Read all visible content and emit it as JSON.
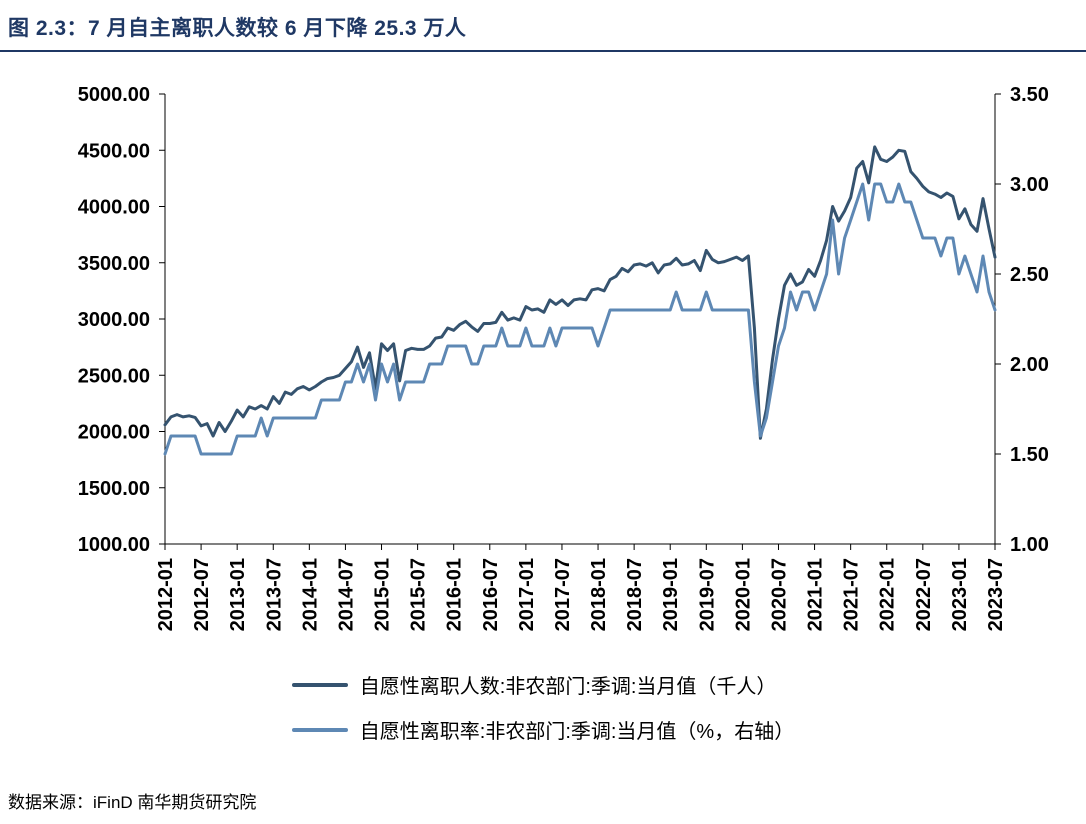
{
  "header": {
    "title": "图 2.3：7 月自主离职人数较 6 月下降 25.3 万人"
  },
  "footer": {
    "source": "数据来源：iFinD 南华期货研究院"
  },
  "colors": {
    "title_navy": "#1f3864",
    "series_dark": "#35536f",
    "series_light": "#5e88b4",
    "axis_black": "#000000"
  },
  "chart_data": {
    "type": "line",
    "title": "",
    "xlabel": "",
    "frequency": "monthly",
    "x_start": "2012-01",
    "x_end": "2023-07",
    "x_tick_every": 6,
    "x_ticks": [
      "2012-01",
      "2012-07",
      "2013-01",
      "2013-07",
      "2014-01",
      "2014-07",
      "2015-01",
      "2015-07",
      "2016-01",
      "2016-07",
      "2017-01",
      "2017-07",
      "2018-01",
      "2018-07",
      "2019-01",
      "2019-07",
      "2020-01",
      "2020-07",
      "2021-01",
      "2021-07",
      "2022-01",
      "2022-07",
      "2023-01",
      "2023-07"
    ],
    "grid": false,
    "legend_position": "bottom",
    "left_axis": {
      "min": 1000,
      "max": 5000,
      "step": 500,
      "decimals": 2
    },
    "right_axis": {
      "min": 1.0,
      "max": 3.5,
      "step": 0.5,
      "decimals": 2
    },
    "series": [
      {
        "name": "自愿性离职人数:非农部门:季调:当月值（千人）",
        "axis": "left",
        "color": "#35536f",
        "values": [
          2060,
          2130,
          2150,
          2130,
          2140,
          2125,
          2050,
          2070,
          1960,
          2080,
          2000,
          2090,
          2190,
          2130,
          2220,
          2200,
          2230,
          2200,
          2310,
          2250,
          2350,
          2330,
          2380,
          2400,
          2370,
          2400,
          2440,
          2470,
          2480,
          2500,
          2560,
          2620,
          2750,
          2570,
          2700,
          2380,
          2780,
          2720,
          2780,
          2450,
          2720,
          2740,
          2730,
          2730,
          2760,
          2830,
          2840,
          2920,
          2900,
          2950,
          2980,
          2930,
          2890,
          2960,
          2960,
          2970,
          3060,
          2990,
          3010,
          2990,
          3110,
          3080,
          3090,
          3060,
          3170,
          3130,
          3170,
          3120,
          3170,
          3180,
          3170,
          3260,
          3270,
          3250,
          3350,
          3380,
          3450,
          3420,
          3480,
          3490,
          3470,
          3500,
          3410,
          3480,
          3490,
          3540,
          3480,
          3490,
          3520,
          3430,
          3610,
          3530,
          3500,
          3510,
          3530,
          3550,
          3520,
          3560,
          2920,
          1940,
          2200,
          2640,
          3000,
          3300,
          3400,
          3300,
          3330,
          3440,
          3380,
          3520,
          3700,
          4000,
          3870,
          3960,
          4080,
          4340,
          4400,
          4210,
          4530,
          4420,
          4400,
          4440,
          4500,
          4490,
          4310,
          4250,
          4180,
          4130,
          4110,
          4080,
          4120,
          4090,
          3890,
          3980,
          3840,
          3780,
          4070,
          3802,
          3549
        ]
      },
      {
        "name": "自愿性离职率:非农部门:季调:当月值（%，右轴）",
        "axis": "right",
        "color": "#5e88b4",
        "values": [
          1.5,
          1.6,
          1.6,
          1.6,
          1.6,
          1.6,
          1.5,
          1.5,
          1.5,
          1.5,
          1.5,
          1.5,
          1.6,
          1.6,
          1.6,
          1.6,
          1.7,
          1.6,
          1.7,
          1.7,
          1.7,
          1.7,
          1.7,
          1.7,
          1.7,
          1.7,
          1.8,
          1.8,
          1.8,
          1.8,
          1.9,
          1.9,
          2.0,
          1.9,
          2.0,
          1.8,
          2.0,
          1.9,
          2.0,
          1.8,
          1.9,
          1.9,
          1.9,
          1.9,
          2.0,
          2.0,
          2.0,
          2.1,
          2.1,
          2.1,
          2.1,
          2.0,
          2.0,
          2.1,
          2.1,
          2.1,
          2.2,
          2.1,
          2.1,
          2.1,
          2.2,
          2.1,
          2.1,
          2.1,
          2.2,
          2.1,
          2.2,
          2.2,
          2.2,
          2.2,
          2.2,
          2.2,
          2.1,
          2.2,
          2.3,
          2.3,
          2.3,
          2.3,
          2.3,
          2.3,
          2.3,
          2.3,
          2.3,
          2.3,
          2.3,
          2.4,
          2.3,
          2.3,
          2.3,
          2.3,
          2.4,
          2.3,
          2.3,
          2.3,
          2.3,
          2.3,
          2.3,
          2.3,
          1.9,
          1.6,
          1.7,
          1.9,
          2.1,
          2.2,
          2.4,
          2.3,
          2.4,
          2.4,
          2.3,
          2.4,
          2.5,
          2.8,
          2.5,
          2.7,
          2.8,
          2.9,
          3.0,
          2.8,
          3.0,
          3.0,
          2.9,
          2.9,
          3.0,
          2.9,
          2.9,
          2.8,
          2.7,
          2.7,
          2.7,
          2.6,
          2.7,
          2.7,
          2.5,
          2.6,
          2.5,
          2.4,
          2.6,
          2.4,
          2.3
        ]
      }
    ]
  }
}
